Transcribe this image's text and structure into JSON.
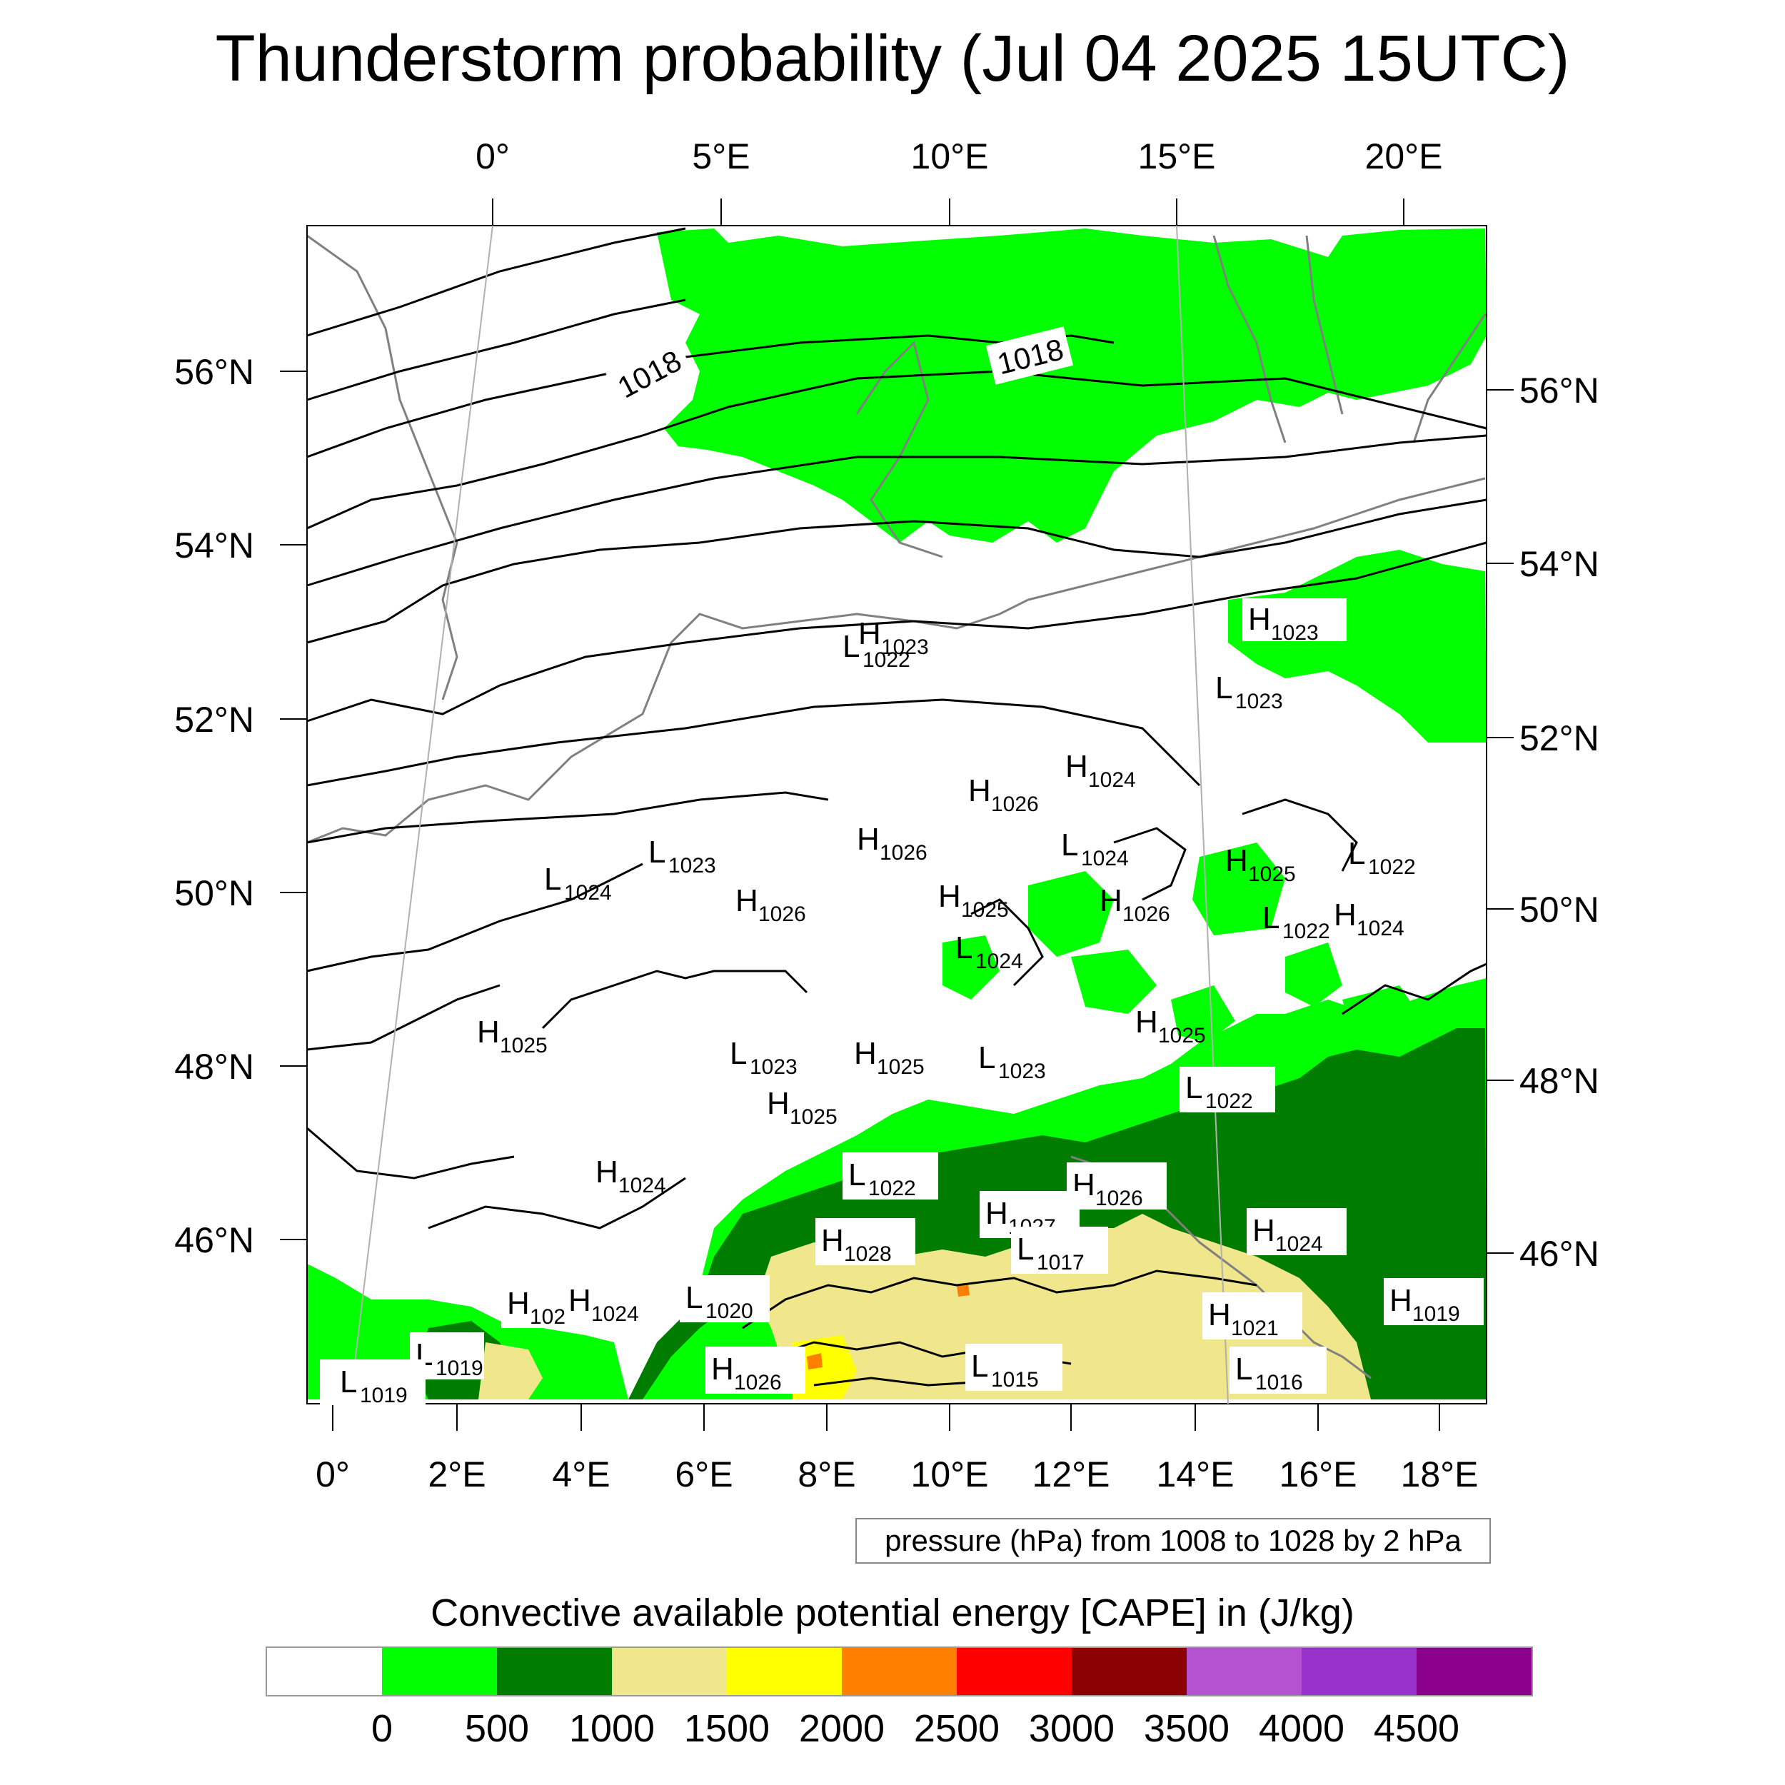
{
  "title": "Thunderstorm probability (Jul 04 2025 15UTC)",
  "top_lon_labels": [
    "0°",
    "5°E",
    "10°E",
    "15°E",
    "20°E"
  ],
  "left_lat_labels": [
    "56°N",
    "54°N",
    "52°N",
    "50°N",
    "48°N",
    "46°N"
  ],
  "right_lat_labels": [
    "56°N",
    "54°N",
    "52°N",
    "50°N",
    "48°N",
    "46°N"
  ],
  "bottom_lon_labels": [
    "0°",
    "2°E",
    "4°E",
    "6°E",
    "8°E",
    "10°E",
    "12°E",
    "14°E",
    "16°E",
    "18°E"
  ],
  "isobar_labels": [
    "1018",
    "1018"
  ],
  "pressure_centers": [
    {
      "letter": "H",
      "value": "1023"
    },
    {
      "letter": "L",
      "value": "1022"
    },
    {
      "letter": "H",
      "value": "1023"
    },
    {
      "letter": "L",
      "value": "1023"
    },
    {
      "letter": "H",
      "value": "1024"
    },
    {
      "letter": "H",
      "value": "1026"
    },
    {
      "letter": "H",
      "value": "1026"
    },
    {
      "letter": "L",
      "value": "1024"
    },
    {
      "letter": "L",
      "value": "1023"
    },
    {
      "letter": "L",
      "value": "1024"
    },
    {
      "letter": "H",
      "value": "1026"
    },
    {
      "letter": "H",
      "value": "1025"
    },
    {
      "letter": "H",
      "value": "1026"
    },
    {
      "letter": "H",
      "value": "1025"
    },
    {
      "letter": "L",
      "value": "1022"
    },
    {
      "letter": "L",
      "value": "1022"
    },
    {
      "letter": "H",
      "value": "1024"
    },
    {
      "letter": "L",
      "value": "1024"
    },
    {
      "letter": "H",
      "value": "1025"
    },
    {
      "letter": "H",
      "value": "1025"
    },
    {
      "letter": "L",
      "value": "1023"
    },
    {
      "letter": "H",
      "value": "1025"
    },
    {
      "letter": "L",
      "value": "1023"
    },
    {
      "letter": "H",
      "value": "1025"
    },
    {
      "letter": "L",
      "value": "1022"
    },
    {
      "letter": "H",
      "value": "1024"
    },
    {
      "letter": "L",
      "value": "1022"
    },
    {
      "letter": "H",
      "value": "1026"
    },
    {
      "letter": "H",
      "value": "1027"
    },
    {
      "letter": "H",
      "value": "1028"
    },
    {
      "letter": "L",
      "value": "1017"
    },
    {
      "letter": "H",
      "value": "1024"
    },
    {
      "letter": "H",
      "value": "102"
    },
    {
      "letter": "H",
      "value": "1024"
    },
    {
      "letter": "L",
      "value": "1020"
    },
    {
      "letter": "H",
      "value": "1021"
    },
    {
      "letter": "H",
      "value": "1019"
    },
    {
      "letter": "L",
      "value": "1019"
    },
    {
      "letter": "L",
      "value": "1019"
    },
    {
      "letter": "H",
      "value": "1026"
    },
    {
      "letter": "L",
      "value": "1015"
    },
    {
      "letter": "L",
      "value": "1016"
    }
  ],
  "pressure_info": "pressure (hPa) from 1008 to 1028 by 2 hPa",
  "colorbar": {
    "title": "Convective available potential energy [CAPE] in (J/kg)",
    "colors": [
      "#ffffff",
      "#00ff00",
      "#007d00",
      "#f0e68c",
      "#ffff00",
      "#ff8000",
      "#ff0000",
      "#8b0000",
      "#b452d2",
      "#9932cc",
      "#8b008b"
    ],
    "ticks": [
      "0",
      "500",
      "1000",
      "1500",
      "2000",
      "2500",
      "3000",
      "3500",
      "4000",
      "4500"
    ]
  },
  "colors": {
    "coast": "#808080",
    "isobar": "#000000",
    "cape_0_500": "#00ff00",
    "cape_500_1000": "#007d00",
    "cape_1000_1500": "#f0e68c",
    "cape_1500_2000": "#ffff00",
    "cape_2000_2500": "#ff8000"
  }
}
